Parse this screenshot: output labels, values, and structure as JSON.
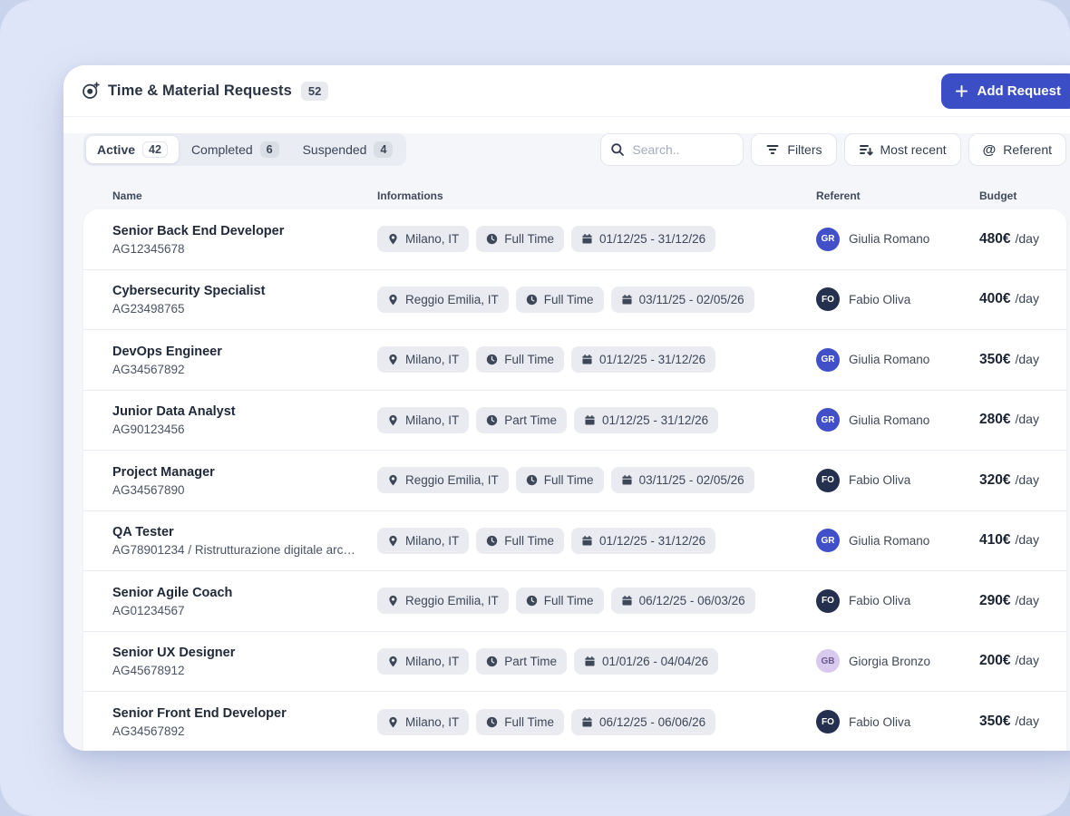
{
  "colors": {
    "accent": "#3c4ec5",
    "page_bg_outer": "#c9d4ec",
    "page_bg_inner": "#dee5f8",
    "badge_bg": "#e9ebf1"
  },
  "header": {
    "icon": "time-requests-icon",
    "title": "Time & Material Requests",
    "count": "52",
    "add_button": {
      "icon": "plus-icon",
      "label": "Add Request",
      "color": "#3c4ec5"
    }
  },
  "tabs": [
    {
      "label": "Active",
      "count": "42",
      "active": true
    },
    {
      "label": "Completed",
      "count": "6",
      "active": false
    },
    {
      "label": "Suspended",
      "count": "4",
      "active": false
    }
  ],
  "toolbar": {
    "search": {
      "icon": "search-icon",
      "placeholder": "Search.."
    },
    "filters": {
      "icon": "filter-icon",
      "label": "Filters"
    },
    "sort": {
      "icon": "sort-descending-icon",
      "label": "Most recent"
    },
    "referent": {
      "icon": "at-icon",
      "label": "Referent"
    }
  },
  "table": {
    "columns": {
      "name": "Name",
      "informations": "Informations",
      "referent": "Referent",
      "budget": "Budget"
    },
    "rows": [
      {
        "name": "Senior Back End Developer",
        "code": "AG12345678",
        "location": "Milano, IT",
        "time": "Full Time",
        "dates": "01/12/25 - 31/12/26",
        "referent": "Giulia Romano",
        "initials": "GR",
        "avatar_color": "#4150c9",
        "avatar_text_color": "#ffffff",
        "budget": "480€",
        "unit": "/day"
      },
      {
        "name": "Cybersecurity Specialist",
        "code": "AG23498765",
        "location": "Reggio Emilia, IT",
        "time": "Full Time",
        "dates": "03/11/25 - 02/05/26",
        "referent": "Fabio Oliva",
        "initials": "FO",
        "avatar_color": "#25304f",
        "avatar_text_color": "#ffffff",
        "budget": "400€",
        "unit": "/day"
      },
      {
        "name": "DevOps Engineer",
        "code": "AG34567892",
        "location": "Milano, IT",
        "time": "Full Time",
        "dates": "01/12/25 - 31/12/26",
        "referent": "Giulia Romano",
        "initials": "GR",
        "avatar_color": "#4150c9",
        "avatar_text_color": "#ffffff",
        "budget": "350€",
        "unit": "/day"
      },
      {
        "name": "Junior Data Analyst",
        "code": "AG90123456",
        "location": "Milano, IT",
        "time": "Part Time",
        "dates": "01/12/25 - 31/12/26",
        "referent": "Giulia Romano",
        "initials": "GR",
        "avatar_color": "#4150c9",
        "avatar_text_color": "#ffffff",
        "budget": "280€",
        "unit": "/day"
      },
      {
        "name": "Project Manager",
        "code": "AG34567890",
        "location": "Reggio Emilia, IT",
        "time": "Full Time",
        "dates": "03/11/25 - 02/05/26",
        "referent": "Fabio Oliva",
        "initials": "FO",
        "avatar_color": "#25304f",
        "avatar_text_color": "#ffffff",
        "budget": "320€",
        "unit": "/day"
      },
      {
        "name": "QA Tester",
        "code": "AG78901234 / Ristrutturazione digitale archi...",
        "location": "Milano, IT",
        "time": "Full Time",
        "dates": "01/12/25 - 31/12/26",
        "referent": "Giulia Romano",
        "initials": "GR",
        "avatar_color": "#4150c9",
        "avatar_text_color": "#ffffff",
        "budget": "410€",
        "unit": "/day"
      },
      {
        "name": "Senior Agile Coach",
        "code": "AG01234567",
        "location": "Reggio Emilia, IT",
        "time": "Full Time",
        "dates": "06/12/25 - 06/03/26",
        "referent": "Fabio Oliva",
        "initials": "FO",
        "avatar_color": "#25304f",
        "avatar_text_color": "#ffffff",
        "budget": "290€",
        "unit": "/day"
      },
      {
        "name": "Senior UX Designer",
        "code": "AG45678912",
        "location": "Milano, IT",
        "time": "Part Time",
        "dates": "01/01/26 - 04/04/26",
        "referent": "Giorgia Bronzo",
        "initials": "GB",
        "avatar_color": "#d9c9ef",
        "avatar_text_color": "#6b5a8e",
        "budget": "200€",
        "unit": "/day"
      },
      {
        "name": "Senior Front End Developer",
        "code": "AG34567892",
        "location": "Milano, IT",
        "time": "Full Time",
        "dates": "06/12/25 - 06/06/26",
        "referent": "Fabio Oliva",
        "initials": "FO",
        "avatar_color": "#25304f",
        "avatar_text_color": "#ffffff",
        "budget": "350€",
        "unit": "/day"
      }
    ]
  }
}
